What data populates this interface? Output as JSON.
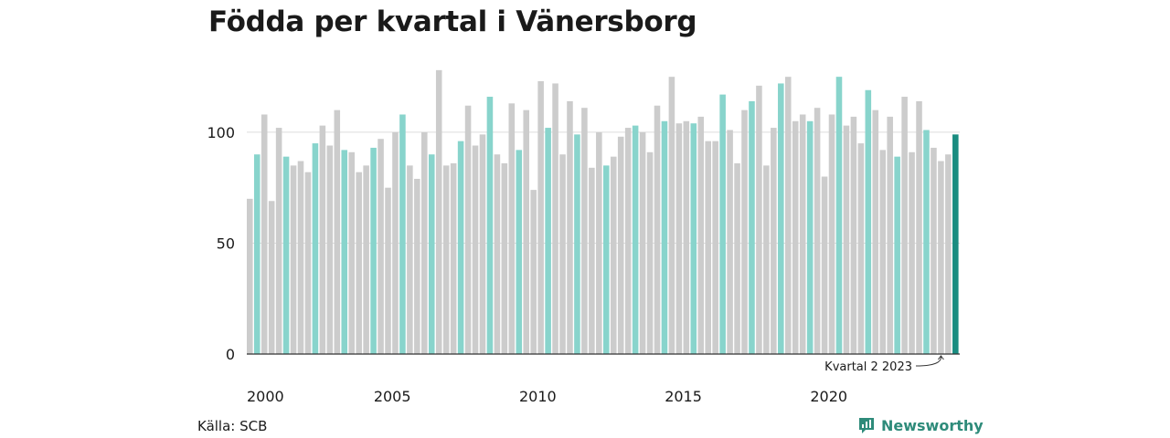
{
  "title": "Födda per kvartal i Vänersborg",
  "source": "Källa: SCB",
  "brand": {
    "name": "Newsworthy",
    "icon": "newsworthy-logo-icon"
  },
  "colors": {
    "default_bar": "#cccccc",
    "q2_bar": "#88d4cc",
    "latest_bar": "#1a8c80",
    "gridline": "#dddddd",
    "axis": "#333333"
  },
  "annotation": "Kvartal 2 2023",
  "chart_data": {
    "type": "bar",
    "title": "Födda per kvartal i Vänersborg",
    "xlabel": "",
    "ylabel": "",
    "ylim": [
      0,
      130
    ],
    "y_ticks": [
      0,
      50,
      100
    ],
    "x_ticks": [
      "2000",
      "2005",
      "2010",
      "2015",
      "2020"
    ],
    "grid": true,
    "start_year": 2000,
    "highlight": "Kvartal 2 highlighted; latest bar (Kvartal 2 2023) darker",
    "values": [
      70,
      90,
      108,
      69,
      102,
      89,
      85,
      87,
      82,
      95,
      103,
      94,
      110,
      92,
      91,
      82,
      85,
      93,
      97,
      75,
      100,
      108,
      85,
      79,
      100,
      90,
      128,
      85,
      86,
      96,
      112,
      94,
      99,
      116,
      90,
      86,
      113,
      92,
      110,
      74,
      123,
      102,
      122,
      90,
      114,
      99,
      111,
      84,
      100,
      85,
      89,
      98,
      102,
      103,
      100,
      91,
      112,
      105,
      125,
      104,
      105,
      104,
      107,
      96,
      96,
      117,
      101,
      86,
      110,
      114,
      121,
      85,
      102,
      122,
      125,
      105,
      108,
      105,
      111,
      80,
      108,
      125,
      103,
      107,
      95,
      119,
      110,
      92,
      107,
      89,
      116,
      91,
      114,
      101,
      93,
      87,
      90,
      99
    ]
  }
}
